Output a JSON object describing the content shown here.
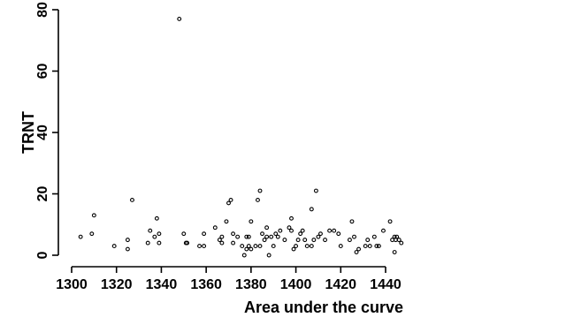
{
  "chart_data": {
    "type": "scatter",
    "xlabel": "Area under the curve",
    "ylabel": "TRNT",
    "xlim": [
      1296,
      1450
    ],
    "ylim": [
      0,
      80
    ],
    "x_ticks": [
      1300,
      1320,
      1340,
      1360,
      1380,
      1400,
      1420,
      1440
    ],
    "y_ticks": [
      0,
      20,
      40,
      60,
      80
    ],
    "grid": false,
    "points": [
      [
        1304,
        6
      ],
      [
        1309,
        7
      ],
      [
        1310,
        13
      ],
      [
        1319,
        3
      ],
      [
        1325,
        5
      ],
      [
        1325,
        2
      ],
      [
        1327,
        18
      ],
      [
        1334,
        4
      ],
      [
        1335,
        8
      ],
      [
        1337,
        6
      ],
      [
        1338,
        12
      ],
      [
        1339,
        7
      ],
      [
        1339,
        4
      ],
      [
        1348,
        77
      ],
      [
        1350,
        7
      ],
      [
        1351,
        4
      ],
      [
        1351.5,
        4
      ],
      [
        1357,
        3
      ],
      [
        1359,
        3
      ],
      [
        1359,
        7
      ],
      [
        1364,
        9
      ],
      [
        1366,
        5
      ],
      [
        1367,
        4
      ],
      [
        1367,
        6
      ],
      [
        1369,
        11
      ],
      [
        1370,
        17
      ],
      [
        1371,
        18
      ],
      [
        1372,
        4
      ],
      [
        1372,
        7
      ],
      [
        1374,
        6
      ],
      [
        1376,
        3
      ],
      [
        1377,
        0
      ],
      [
        1378,
        2
      ],
      [
        1378,
        6
      ],
      [
        1379,
        3
      ],
      [
        1379,
        6
      ],
      [
        1380,
        11
      ],
      [
        1380,
        2
      ],
      [
        1382,
        3
      ],
      [
        1383,
        18
      ],
      [
        1384,
        21
      ],
      [
        1384,
        3
      ],
      [
        1385,
        7
      ],
      [
        1386,
        5
      ],
      [
        1387,
        9
      ],
      [
        1387,
        6
      ],
      [
        1388,
        0
      ],
      [
        1389,
        6
      ],
      [
        1390,
        3
      ],
      [
        1391,
        7
      ],
      [
        1392,
        6
      ],
      [
        1393,
        8
      ],
      [
        1395,
        5
      ],
      [
        1397,
        9
      ],
      [
        1398,
        12
      ],
      [
        1398,
        8
      ],
      [
        1399,
        2
      ],
      [
        1400,
        3
      ],
      [
        1401,
        5
      ],
      [
        1402,
        7
      ],
      [
        1403,
        8
      ],
      [
        1404,
        5
      ],
      [
        1405,
        3
      ],
      [
        1407,
        15
      ],
      [
        1407,
        3
      ],
      [
        1408,
        5
      ],
      [
        1409,
        21
      ],
      [
        1410,
        6
      ],
      [
        1411,
        7
      ],
      [
        1413,
        5
      ],
      [
        1415,
        8
      ],
      [
        1417,
        8
      ],
      [
        1419,
        7
      ],
      [
        1420,
        3
      ],
      [
        1424,
        5
      ],
      [
        1425,
        11
      ],
      [
        1426,
        6
      ],
      [
        1427,
        1
      ],
      [
        1428,
        2
      ],
      [
        1431,
        3
      ],
      [
        1432,
        5
      ],
      [
        1433,
        3
      ],
      [
        1435,
        6
      ],
      [
        1436,
        3
      ],
      [
        1437,
        3
      ],
      [
        1439,
        8
      ],
      [
        1442,
        11
      ],
      [
        1443,
        5
      ],
      [
        1444,
        6
      ],
      [
        1444,
        1
      ],
      [
        1444.5,
        5
      ],
      [
        1445,
        6
      ],
      [
        1446,
        5
      ],
      [
        1447,
        4
      ]
    ]
  }
}
